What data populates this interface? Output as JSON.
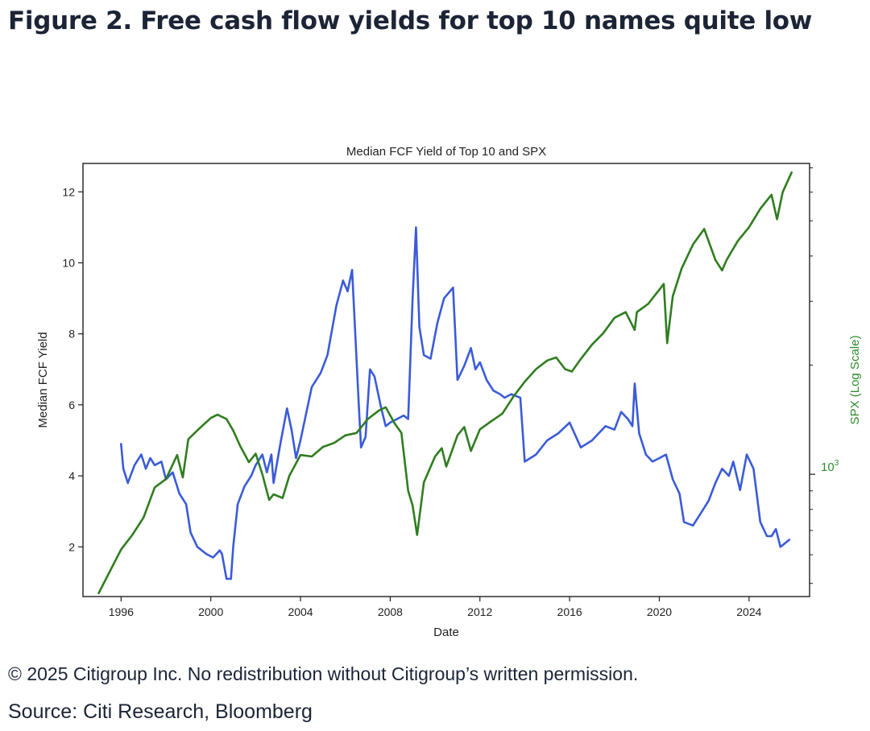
{
  "figure": {
    "heading": "Figure 2. Free cash flow yields for top 10 names quite low",
    "copyright": "© 2025 Citigroup Inc. No redistribution without Citigroup’s written permission.",
    "source": "Source: Citi Research, Bloomberg"
  },
  "colors": {
    "fcf": "#3a5bd9",
    "spx": "#2f7d1f",
    "y2_label": "#2e8b2e",
    "title": "#1c2436"
  },
  "chart_data": {
    "type": "line",
    "title": "Median FCF Yield of Top 10 and SPX",
    "xlabel": "Date",
    "ylabel": "Median FCF Yield",
    "y2label": "SPX (Log Scale)",
    "y2_tick_base": "10",
    "y2_tick_exp": "3",
    "xlim": [
      1994.3,
      2026.7
    ],
    "ylim": [
      0.6,
      12.8
    ],
    "y2lim_log": [
      460,
      7200
    ],
    "x_ticks": [
      1996,
      2000,
      2004,
      2008,
      2012,
      2016,
      2020,
      2024
    ],
    "y_ticks": [
      2,
      4,
      6,
      8,
      10,
      12
    ],
    "series": [
      {
        "name": "Median FCF Yield of Top 10",
        "axis": "left",
        "x": [
          1996.0,
          1996.1,
          1996.3,
          1996.6,
          1996.9,
          1997.1,
          1997.3,
          1997.5,
          1997.8,
          1998.0,
          1998.3,
          1998.6,
          1998.9,
          1999.1,
          1999.4,
          1999.8,
          2000.1,
          2000.4,
          2000.5,
          2000.7,
          2000.9,
          2001.0,
          2001.2,
          2001.5,
          2001.8,
          2002.0,
          2002.3,
          2002.5,
          2002.7,
          2002.8,
          2003.1,
          2003.4,
          2003.6,
          2003.8,
          2004.0,
          2004.2,
          2004.5,
          2004.9,
          2005.2,
          2005.6,
          2005.9,
          2006.1,
          2006.3,
          2006.6,
          2006.7,
          2006.9,
          2007.1,
          2007.3,
          2007.6,
          2007.8,
          2008.0,
          2008.3,
          2008.6,
          2008.8,
          2009.0,
          2009.15,
          2009.3,
          2009.5,
          2009.8,
          2010.1,
          2010.4,
          2010.8,
          2011.0,
          2011.3,
          2011.6,
          2011.8,
          2012.0,
          2012.3,
          2012.6,
          2012.9,
          2013.1,
          2013.4,
          2013.8,
          2014.0,
          2014.5,
          2015.0,
          2015.5,
          2016.0,
          2016.5,
          2017.0,
          2017.3,
          2017.6,
          2018.0,
          2018.3,
          2018.6,
          2018.8,
          2018.9,
          2019.1,
          2019.4,
          2019.7,
          2020.0,
          2020.3,
          2020.6,
          2020.9,
          2021.1,
          2021.5,
          2021.9,
          2022.2,
          2022.5,
          2022.8,
          2023.1,
          2023.3,
          2023.6,
          2023.9,
          2024.2,
          2024.5,
          2024.8,
          2025.0,
          2025.2,
          2025.4,
          2025.6,
          2025.8
        ],
        "values": [
          4.9,
          4.2,
          3.8,
          4.3,
          4.6,
          4.2,
          4.5,
          4.3,
          4.4,
          3.9,
          4.1,
          3.5,
          3.2,
          2.4,
          2.0,
          1.8,
          1.7,
          1.9,
          1.8,
          1.1,
          1.1,
          2.0,
          3.2,
          3.7,
          4.0,
          4.3,
          4.6,
          4.1,
          4.6,
          3.8,
          4.9,
          5.9,
          5.3,
          4.5,
          5.0,
          5.6,
          6.5,
          6.9,
          7.4,
          8.8,
          9.5,
          9.2,
          9.8,
          6.0,
          4.8,
          5.1,
          7.0,
          6.8,
          5.9,
          5.4,
          5.5,
          5.6,
          5.7,
          5.6,
          9.0,
          11.0,
          8.2,
          7.4,
          7.3,
          8.3,
          9.0,
          9.3,
          6.7,
          7.1,
          7.6,
          7.0,
          7.2,
          6.7,
          6.4,
          6.3,
          6.2,
          6.3,
          6.2,
          4.4,
          4.6,
          5.0,
          5.2,
          5.5,
          4.8,
          5.0,
          5.2,
          5.4,
          5.3,
          5.8,
          5.6,
          5.4,
          6.6,
          5.2,
          4.6,
          4.4,
          4.5,
          4.6,
          3.9,
          3.5,
          2.7,
          2.6,
          3.0,
          3.3,
          3.8,
          4.2,
          4.0,
          4.4,
          3.6,
          4.6,
          4.2,
          2.7,
          2.3,
          2.3,
          2.5,
          2.0,
          2.1,
          2.2
        ]
      },
      {
        "name": "SPX",
        "axis": "right",
        "x": [
          1995.0,
          1995.5,
          1996.0,
          1996.5,
          1997.0,
          1997.5,
          1998.0,
          1998.5,
          1998.75,
          1999.0,
          1999.5,
          2000.0,
          2000.3,
          2000.7,
          2001.0,
          2001.3,
          2001.7,
          2002.0,
          2002.3,
          2002.6,
          2002.8,
          2003.2,
          2003.5,
          2004.0,
          2004.5,
          2005.0,
          2005.5,
          2006.0,
          2006.5,
          2007.0,
          2007.5,
          2007.8,
          2008.2,
          2008.5,
          2008.8,
          2009.0,
          2009.2,
          2009.5,
          2010.0,
          2010.3,
          2010.5,
          2011.0,
          2011.3,
          2011.6,
          2012.0,
          2012.5,
          2013.0,
          2013.5,
          2014.0,
          2014.5,
          2015.0,
          2015.4,
          2015.8,
          2016.1,
          2016.5,
          2017.0,
          2017.5,
          2018.0,
          2018.5,
          2018.9,
          2019.0,
          2019.5,
          2020.0,
          2020.2,
          2020.35,
          2020.6,
          2021.0,
          2021.5,
          2022.0,
          2022.5,
          2022.8,
          2023.0,
          2023.5,
          2024.0,
          2024.5,
          2025.0,
          2025.25,
          2025.5,
          2025.9
        ],
        "values": [
          470,
          540,
          620,
          680,
          760,
          920,
          970,
          1130,
          980,
          1250,
          1340,
          1430,
          1460,
          1420,
          1320,
          1200,
          1080,
          1140,
          1000,
          850,
          880,
          860,
          990,
          1130,
          1120,
          1190,
          1220,
          1280,
          1300,
          1420,
          1500,
          1530,
          1380,
          1300,
          900,
          820,
          680,
          950,
          1120,
          1180,
          1050,
          1280,
          1350,
          1160,
          1330,
          1400,
          1470,
          1640,
          1800,
          1950,
          2060,
          2100,
          1950,
          1920,
          2080,
          2280,
          2450,
          2700,
          2800,
          2500,
          2800,
          2950,
          3230,
          3350,
          2300,
          3100,
          3700,
          4300,
          4750,
          3900,
          3650,
          3900,
          4400,
          4800,
          5400,
          5900,
          5050,
          6000,
          6800
        ]
      }
    ]
  }
}
